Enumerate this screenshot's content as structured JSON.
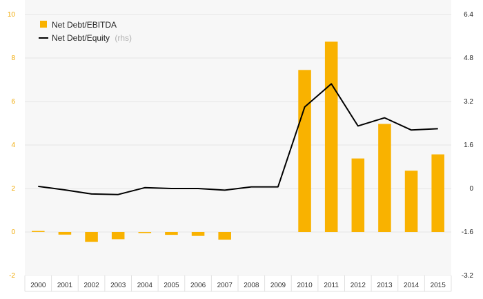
{
  "chart_data": {
    "type": "bar",
    "title": "",
    "categories": [
      "2000",
      "2001",
      "2002",
      "2003",
      "2004",
      "2005",
      "2006",
      "2007",
      "2008",
      "2009",
      "2010",
      "2011",
      "2012",
      "2013",
      "2014",
      "2015"
    ],
    "series": [
      {
        "name": "Net Debt/EBITDA",
        "type": "bar",
        "axis": "left",
        "color": "#f9b200",
        "values": [
          0.05,
          -0.12,
          -0.45,
          -0.33,
          -0.04,
          -0.13,
          -0.18,
          -0.35,
          null,
          null,
          7.45,
          8.75,
          3.38,
          4.97,
          2.82,
          3.57
        ]
      },
      {
        "name": "Net Debt/Equity",
        "type": "line",
        "axis": "right",
        "color": "#000000",
        "values": [
          0.08,
          -0.05,
          -0.2,
          -0.22,
          0.03,
          0.0,
          0.0,
          -0.06,
          0.06,
          0.06,
          3.0,
          3.85,
          2.3,
          2.6,
          2.15,
          2.2
        ]
      }
    ],
    "y_left": {
      "lim": [
        -2,
        10
      ],
      "ticks": [
        "-2",
        "0",
        "2",
        "4",
        "6",
        "8",
        "10"
      ]
    },
    "y_right": {
      "lim": [
        -3.2,
        6.4
      ],
      "ticks": [
        "-3.2",
        "-1.6",
        "0",
        "1.6",
        "3.2",
        "4.8",
        "6.4"
      ]
    },
    "legend": [
      {
        "label": "Net Debt/EBITDA",
        "suffix": ""
      },
      {
        "label": "Net Debt/Equity",
        "suffix": "(rhs)"
      }
    ],
    "legend_position": "top-left",
    "grid": true
  },
  "colors": {
    "bar": "#f9b200",
    "line": "#000000",
    "left_ticks": "#f0a800",
    "grid": "#e6e6e6"
  }
}
